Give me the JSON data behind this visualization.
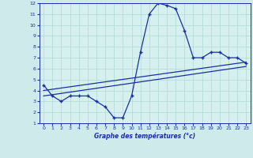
{
  "title": "",
  "xlabel": "Graphe des températures (°c)",
  "ylabel": "",
  "bg_color": "#ceeaea",
  "plot_bg_color": "#d6f0f0",
  "grid_color": "#b0d8d8",
  "line_color": "#1a2fa0",
  "xlabel_color": "#1a2fa0",
  "xlabel_bg": "#ddeeff",
  "xlim": [
    -0.5,
    23.5
  ],
  "ylim": [
    1,
    12
  ],
  "xticks": [
    0,
    1,
    2,
    3,
    4,
    5,
    6,
    7,
    8,
    9,
    10,
    11,
    12,
    13,
    14,
    15,
    16,
    17,
    18,
    19,
    20,
    21,
    22,
    23
  ],
  "yticks": [
    1,
    2,
    3,
    4,
    5,
    6,
    7,
    8,
    9,
    10,
    11,
    12
  ],
  "temp_x": [
    0,
    1,
    2,
    3,
    4,
    5,
    6,
    7,
    8,
    9,
    10,
    11,
    12,
    13,
    14,
    15,
    16,
    17,
    18,
    19,
    20,
    21,
    22,
    23
  ],
  "temp_y": [
    4.5,
    3.5,
    3.0,
    3.5,
    3.5,
    3.5,
    3.0,
    2.5,
    1.5,
    1.5,
    3.5,
    7.5,
    11.0,
    12.0,
    11.8,
    11.5,
    9.5,
    7.0,
    7.0,
    7.5,
    7.5,
    7.0,
    7.0,
    6.5
  ],
  "line1_x": [
    0,
    23
  ],
  "line1_y": [
    3.5,
    6.2
  ],
  "line2_x": [
    0,
    23
  ],
  "line2_y": [
    4.0,
    6.6
  ]
}
